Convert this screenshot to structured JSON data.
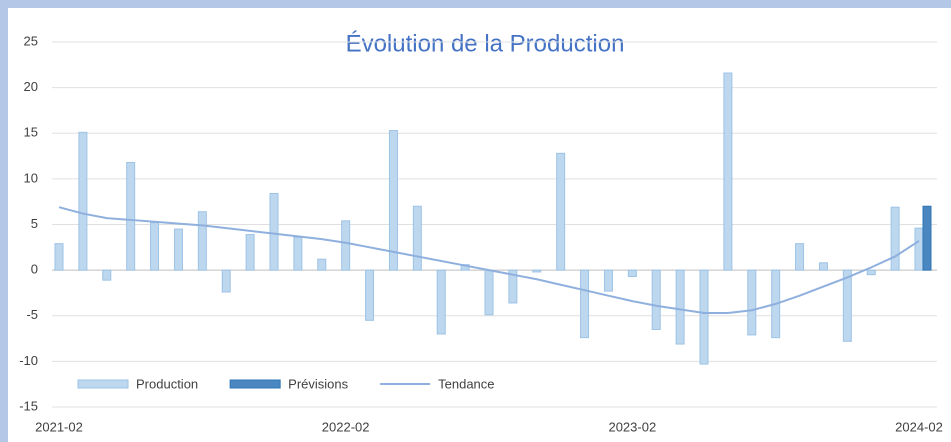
{
  "chart_data": {
    "type": "bar",
    "title": "Évolution de la Production",
    "categories": [
      "2021-02",
      null,
      null,
      null,
      null,
      null,
      null,
      null,
      null,
      null,
      null,
      null,
      "2022-02",
      null,
      null,
      null,
      null,
      null,
      null,
      null,
      null,
      null,
      null,
      null,
      "2023-02",
      null,
      null,
      null,
      null,
      null,
      null,
      null,
      null,
      null,
      null,
      null,
      "2024-02"
    ],
    "series": [
      {
        "name": "Production",
        "type": "bar",
        "color": "#bdd7ee",
        "edge": "#9dc3e6",
        "values": [
          2.9,
          15.1,
          -1.1,
          11.8,
          5.2,
          4.5,
          6.4,
          -2.4,
          3.9,
          8.4,
          3.6,
          1.2,
          5.4,
          -5.5,
          15.3,
          7.0,
          -7.0,
          0.6,
          -4.9,
          -3.6,
          -0.2,
          12.8,
          -7.4,
          -2.3,
          -0.7,
          -6.5,
          -8.1,
          -10.3,
          21.6,
          -7.1,
          -7.4,
          2.9,
          0.8,
          -7.8,
          -0.5,
          6.9,
          4.6
        ]
      },
      {
        "name": "Prévisions",
        "type": "bar",
        "color": "#4a86c0",
        "edge": "#2e75b6",
        "values": [
          null,
          null,
          null,
          null,
          null,
          null,
          null,
          null,
          null,
          null,
          null,
          null,
          null,
          null,
          null,
          null,
          null,
          null,
          null,
          null,
          null,
          null,
          null,
          null,
          null,
          null,
          null,
          null,
          null,
          null,
          null,
          null,
          null,
          null,
          null,
          null,
          7.0
        ]
      },
      {
        "name": "Tendance",
        "type": "line",
        "color": "#8fb0de",
        "values": [
          6.9,
          6.2,
          5.7,
          5.5,
          5.3,
          5.1,
          4.9,
          4.6,
          4.3,
          4.0,
          3.7,
          3.4,
          3.0,
          2.5,
          2.0,
          1.5,
          1.0,
          0.5,
          0.0,
          -0.5,
          -1.0,
          -1.6,
          -2.2,
          -2.8,
          -3.4,
          -3.9,
          -4.3,
          -4.7,
          -4.7,
          -4.4,
          -3.7,
          -2.8,
          -1.8,
          -0.8,
          0.3,
          1.5,
          3.2
        ]
      }
    ],
    "ylim": [
      -15,
      25
    ],
    "yticks": [
      -15,
      -10,
      -5,
      0,
      5,
      10,
      15,
      20,
      25
    ],
    "grid": true,
    "legend": "lower left"
  }
}
